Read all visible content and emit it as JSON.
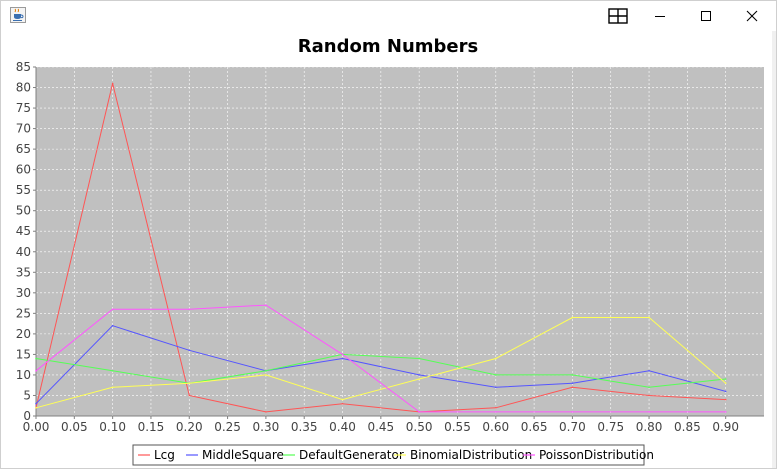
{
  "window": {
    "icons": {
      "app": "java-cup-icon",
      "snap": "snap-layout-icon",
      "minimize": "minimize-icon",
      "maximize": "maximize-icon",
      "close": "close-icon"
    }
  },
  "chart_data": {
    "type": "line",
    "title": "Random Numbers",
    "xlabel": "",
    "ylabel": "",
    "xlim": [
      0.0,
      0.95
    ],
    "ylim": [
      0,
      85
    ],
    "x_ticks": [
      "0.00",
      "0.05",
      "0.10",
      "0.15",
      "0.20",
      "0.25",
      "0.30",
      "0.35",
      "0.40",
      "0.45",
      "0.50",
      "0.55",
      "0.60",
      "0.65",
      "0.70",
      "0.75",
      "0.80",
      "0.85",
      "0.90"
    ],
    "y_ticks": [
      "0",
      "5",
      "10",
      "15",
      "20",
      "25",
      "30",
      "35",
      "40",
      "45",
      "50",
      "55",
      "60",
      "65",
      "70",
      "75",
      "80",
      "85"
    ],
    "grid": true,
    "legend_position": "bottom",
    "x": [
      0.0,
      0.1,
      0.2,
      0.3,
      0.4,
      0.5,
      0.6,
      0.7,
      0.8,
      0.9
    ],
    "series": [
      {
        "name": "Lcg",
        "color": "#ff5555",
        "values": [
          2,
          81,
          5,
          1,
          3,
          1,
          2,
          7,
          5,
          4
        ]
      },
      {
        "name": "MiddleSquare",
        "color": "#5555ff",
        "values": [
          3,
          22,
          16,
          11,
          14,
          10,
          7,
          8,
          11,
          6
        ]
      },
      {
        "name": "DefaultGenerator",
        "color": "#55ff55",
        "values": [
          14,
          11,
          8,
          11,
          15,
          14,
          10,
          10,
          7,
          9
        ]
      },
      {
        "name": "BinomialDistribution",
        "color": "#ffff55",
        "values": [
          2,
          7,
          8,
          10,
          4,
          9,
          14,
          24,
          24,
          8
        ]
      },
      {
        "name": "PoissonDistribution",
        "color": "#ff55ff",
        "values": [
          11,
          26,
          26,
          27,
          15,
          1,
          1,
          1,
          1,
          1
        ]
      }
    ]
  }
}
